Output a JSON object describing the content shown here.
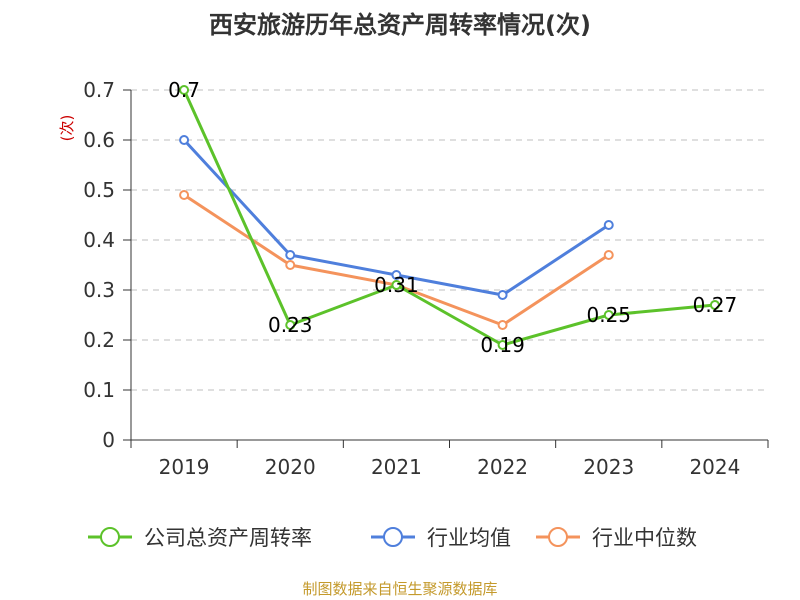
{
  "chart_data": {
    "type": "line",
    "title": "西安旅游历年总资产周转率情况(次)",
    "ylabel": "(次)",
    "categories": [
      "2019",
      "2020",
      "2021",
      "2022",
      "2023",
      "2024"
    ],
    "ylim": [
      0,
      0.7
    ],
    "yticks": [
      "0",
      "0.1",
      "0.2",
      "0.3",
      "0.4",
      "0.5",
      "0.6",
      "0.7"
    ],
    "grid": true,
    "legend_position": "bottom",
    "series": [
      {
        "name": "公司总资产周转率",
        "color": "#5cc22a",
        "values": [
          0.7,
          0.23,
          0.31,
          0.19,
          0.25,
          0.27
        ],
        "labels": [
          "0.7",
          "0.23",
          "0.31",
          "0.19",
          "0.25",
          "0.27"
        ]
      },
      {
        "name": "行业均值",
        "color": "#4f7fdc",
        "values": [
          0.6,
          0.37,
          0.33,
          0.29,
          0.43,
          null
        ]
      },
      {
        "name": "行业中位数",
        "color": "#f4935c",
        "values": [
          0.49,
          0.35,
          0.31,
          0.23,
          0.37,
          null
        ]
      }
    ],
    "source": "制图数据来自恒生聚源数据库",
    "colors": {
      "axis": "#333333",
      "grid": "#cccccc",
      "title": "#333333",
      "ylabel": "#cc0000",
      "source": "#c49a2c"
    }
  }
}
